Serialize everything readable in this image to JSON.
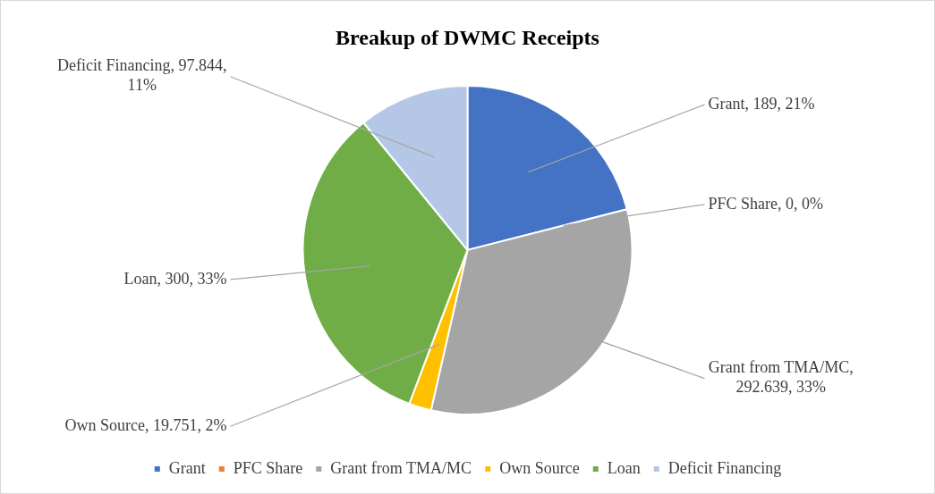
{
  "chart_data": {
    "type": "pie",
    "title": "Breakup of DWMC Receipts",
    "categories": [
      "Grant",
      "PFC Share",
      "Grant from TMA/MC",
      "Own Source",
      "Loan",
      "Deficit Financing"
    ],
    "values": [
      189,
      0,
      292.639,
      19.751,
      300,
      97.844
    ],
    "colors": [
      "#4472c4",
      "#ed7d31",
      "#a5a5a5",
      "#ffc000",
      "#70ad47",
      "#b4c7e7"
    ],
    "value_labels": [
      "Grant, 189, 21%",
      "PFC Share, 0, 0%",
      "Grant from TMA/MC, 292.639, 33%",
      "Own Source, 19.751, 2%",
      "Loan, 300, 33%",
      "Deficit Financing, 97.844, 11%"
    ],
    "legend": "bottom"
  }
}
